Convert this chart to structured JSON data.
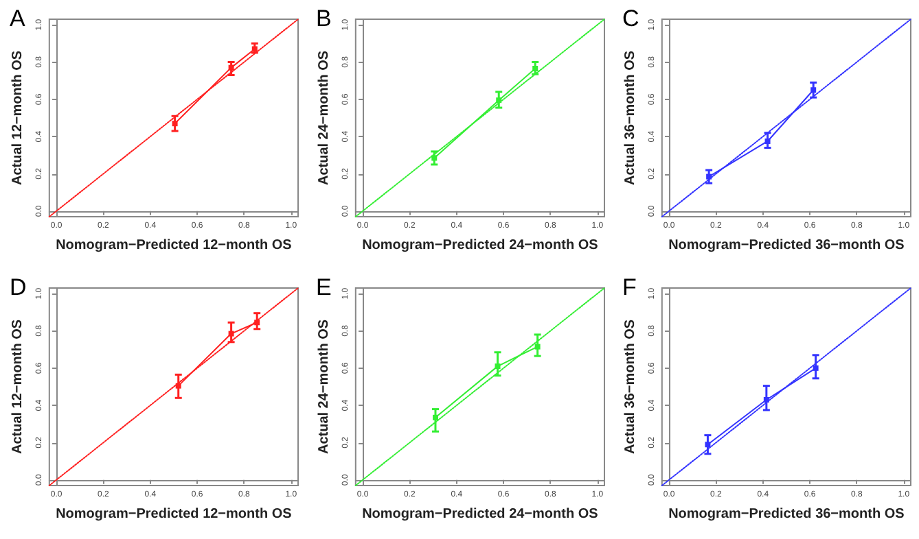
{
  "chart_data": [
    {
      "type": "line",
      "title": "A",
      "xlabel": "Nomogram−Predicted 12−month OS",
      "ylabel": "Actual 12−month OS",
      "xlim": [
        -0.03,
        1.03
      ],
      "ylim": [
        -0.03,
        1.03
      ],
      "xticks": [
        {
          "value": 0,
          "label": "0.0"
        },
        {
          "value": 0.2,
          "label": "0.2"
        },
        {
          "value": 0.4,
          "label": "0.4"
        },
        {
          "value": 0.6,
          "label": "0.6"
        },
        {
          "value": 0.8,
          "label": "0.8"
        },
        {
          "value": 1,
          "label": "1.0"
        }
      ],
      "yticks": [
        {
          "value": 0,
          "label": "0.0"
        },
        {
          "value": 0.2,
          "label": "0.2"
        },
        {
          "value": 0.4,
          "label": "0.4"
        },
        {
          "value": 0.6,
          "label": "0.6"
        },
        {
          "value": 0.8,
          "label": "0.8"
        },
        {
          "value": 1,
          "label": "1.0"
        }
      ],
      "series": [
        {
          "color": "#ff2020",
          "x": [
            0.505,
            0.745,
            0.845
          ],
          "values": [
            0.47,
            0.77,
            0.87
          ],
          "errors": [
            [
              0.43,
              0.51
            ],
            [
              0.73,
              0.8
            ],
            [
              0.85,
              0.9
            ]
          ],
          "marker": "square",
          "line_style": "solid"
        },
        {
          "color": "#ff2020",
          "x": [
            -0.03,
            1.03
          ],
          "values": [
            -0.03,
            1.03
          ],
          "marker": "none",
          "line_style": "dotted"
        }
      ]
    },
    {
      "type": "line",
      "title": "B",
      "xlabel": "Nomogram−Predicted 24−month OS",
      "ylabel": "Actual 24−month OS",
      "xlim": [
        -0.03,
        1.03
      ],
      "ylim": [
        -0.03,
        1.03
      ],
      "xticks": [
        {
          "value": 0,
          "label": "0.0"
        },
        {
          "value": 0.2,
          "label": "0.2"
        },
        {
          "value": 0.4,
          "label": "0.4"
        },
        {
          "value": 0.6,
          "label": "0.6"
        },
        {
          "value": 0.8,
          "label": "0.8"
        },
        {
          "value": 1,
          "label": "1.0"
        }
      ],
      "yticks": [
        {
          "value": 0,
          "label": "0.0"
        },
        {
          "value": 0.2,
          "label": "0.2"
        },
        {
          "value": 0.4,
          "label": "0.4"
        },
        {
          "value": 0.6,
          "label": "0.6"
        },
        {
          "value": 0.8,
          "label": "0.8"
        },
        {
          "value": 1,
          "label": "1.0"
        }
      ],
      "series": [
        {
          "color": "#33ee33",
          "x": [
            0.305,
            0.58,
            0.735
          ],
          "values": [
            0.285,
            0.595,
            0.765
          ],
          "errors": [
            [
              0.25,
              0.32
            ],
            [
              0.555,
              0.64
            ],
            [
              0.735,
              0.8
            ]
          ],
          "marker": "square",
          "line_style": "solid"
        },
        {
          "color": "#33ee33",
          "x": [
            -0.03,
            1.03
          ],
          "values": [
            -0.03,
            1.03
          ],
          "marker": "none",
          "line_style": "dotted"
        }
      ]
    },
    {
      "type": "line",
      "title": "C",
      "xlabel": "Nomogram−Predicted 36−month OS",
      "ylabel": "Actual 36−month OS",
      "xlim": [
        -0.03,
        1.03
      ],
      "ylim": [
        -0.03,
        1.03
      ],
      "xticks": [
        {
          "value": 0,
          "label": "0.0"
        },
        {
          "value": 0.2,
          "label": "0.2"
        },
        {
          "value": 0.4,
          "label": "0.4"
        },
        {
          "value": 0.6,
          "label": "0.6"
        },
        {
          "value": 0.8,
          "label": "0.8"
        },
        {
          "value": 1,
          "label": "1.0"
        }
      ],
      "yticks": [
        {
          "value": 0,
          "label": "0.0"
        },
        {
          "value": 0.2,
          "label": "0.2"
        },
        {
          "value": 0.4,
          "label": "0.4"
        },
        {
          "value": 0.6,
          "label": "0.6"
        },
        {
          "value": 0.8,
          "label": "0.8"
        },
        {
          "value": 1,
          "label": "1.0"
        }
      ],
      "series": [
        {
          "color": "#3333ff",
          "x": [
            0.17,
            0.42,
            0.615
          ],
          "values": [
            0.185,
            0.375,
            0.65
          ],
          "errors": [
            [
              0.15,
              0.22
            ],
            [
              0.34,
              0.42
            ],
            [
              0.61,
              0.69
            ]
          ],
          "marker": "square",
          "line_style": "solid"
        },
        {
          "color": "#3333ff",
          "x": [
            -0.03,
            1.03
          ],
          "values": [
            -0.03,
            1.03
          ],
          "marker": "none",
          "line_style": "dotted"
        }
      ]
    },
    {
      "type": "line",
      "title": "D",
      "xlabel": "Nomogram−Predicted 12−month OS",
      "ylabel": "Actual 12−month OS",
      "xlim": [
        -0.03,
        1.03
      ],
      "ylim": [
        -0.03,
        1.03
      ],
      "xticks": [
        {
          "value": 0,
          "label": "0.0"
        },
        {
          "value": 0.2,
          "label": "0.2"
        },
        {
          "value": 0.4,
          "label": "0.4"
        },
        {
          "value": 0.6,
          "label": "0.6"
        },
        {
          "value": 0.8,
          "label": "0.8"
        },
        {
          "value": 1,
          "label": "1.0"
        }
      ],
      "yticks": [
        {
          "value": 0,
          "label": "0.0"
        },
        {
          "value": 0.2,
          "label": "0.2"
        },
        {
          "value": 0.4,
          "label": "0.4"
        },
        {
          "value": 0.6,
          "label": "0.6"
        },
        {
          "value": 0.8,
          "label": "0.8"
        },
        {
          "value": 1,
          "label": "1.0"
        }
      ],
      "series": [
        {
          "color": "#ff2020",
          "x": [
            0.52,
            0.745,
            0.855
          ],
          "values": [
            0.505,
            0.785,
            0.845
          ],
          "errors": [
            [
              0.44,
              0.565
            ],
            [
              0.74,
              0.845
            ],
            [
              0.81,
              0.895
            ]
          ],
          "marker": "square",
          "line_style": "solid"
        },
        {
          "color": "#ff2020",
          "x": [
            -0.03,
            1.03
          ],
          "values": [
            -0.03,
            1.03
          ],
          "marker": "none",
          "line_style": "dotted"
        }
      ]
    },
    {
      "type": "line",
      "title": "E",
      "xlabel": "Nomogram−Predicted 24−month OS",
      "ylabel": "Actual 24−month OS",
      "xlim": [
        -0.03,
        1.03
      ],
      "ylim": [
        -0.03,
        1.03
      ],
      "xticks": [
        {
          "value": 0,
          "label": "0.0"
        },
        {
          "value": 0.2,
          "label": "0.2"
        },
        {
          "value": 0.4,
          "label": "0.4"
        },
        {
          "value": 0.6,
          "label": "0.6"
        },
        {
          "value": 0.8,
          "label": "0.8"
        },
        {
          "value": 1,
          "label": "1.0"
        }
      ],
      "yticks": [
        {
          "value": 0,
          "label": "0.0"
        },
        {
          "value": 0.2,
          "label": "0.2"
        },
        {
          "value": 0.4,
          "label": "0.4"
        },
        {
          "value": 0.6,
          "label": "0.6"
        },
        {
          "value": 0.8,
          "label": "0.8"
        },
        {
          "value": 1,
          "label": "1.0"
        }
      ],
      "series": [
        {
          "color": "#33ee33",
          "x": [
            0.31,
            0.575,
            0.745
          ],
          "values": [
            0.335,
            0.61,
            0.715
          ],
          "errors": [
            [
              0.26,
              0.38
            ],
            [
              0.56,
              0.685
            ],
            [
              0.665,
              0.78
            ]
          ],
          "marker": "square",
          "line_style": "solid"
        },
        {
          "color": "#33ee33",
          "x": [
            -0.03,
            1.03
          ],
          "values": [
            -0.03,
            1.03
          ],
          "marker": "none",
          "line_style": "dotted"
        }
      ]
    },
    {
      "type": "line",
      "title": "F",
      "xlabel": "Nomogram−Predicted 36−month OS",
      "ylabel": "Actual 36−month OS",
      "xlim": [
        -0.03,
        1.03
      ],
      "ylim": [
        -0.03,
        1.03
      ],
      "xticks": [
        {
          "value": 0,
          "label": "0.0"
        },
        {
          "value": 0.2,
          "label": "0.2"
        },
        {
          "value": 0.4,
          "label": "0.4"
        },
        {
          "value": 0.6,
          "label": "0.6"
        },
        {
          "value": 0.8,
          "label": "0.8"
        },
        {
          "value": 1,
          "label": "1.0"
        }
      ],
      "yticks": [
        {
          "value": 0,
          "label": "0.0"
        },
        {
          "value": 0.2,
          "label": "0.2"
        },
        {
          "value": 0.4,
          "label": "0.4"
        },
        {
          "value": 0.6,
          "label": "0.6"
        },
        {
          "value": 0.8,
          "label": "0.8"
        },
        {
          "value": 1,
          "label": "1.0"
        }
      ],
      "series": [
        {
          "color": "#3333ff",
          "x": [
            0.165,
            0.415,
            0.625
          ],
          "values": [
            0.19,
            0.43,
            0.6
          ],
          "errors": [
            [
              0.14,
              0.24
            ],
            [
              0.375,
              0.505
            ],
            [
              0.545,
              0.67
            ]
          ],
          "marker": "square",
          "line_style": "solid"
        },
        {
          "color": "#3333ff",
          "x": [
            -0.03,
            1.03
          ],
          "values": [
            -0.03,
            1.03
          ],
          "marker": "none",
          "line_style": "dotted"
        }
      ]
    }
  ]
}
